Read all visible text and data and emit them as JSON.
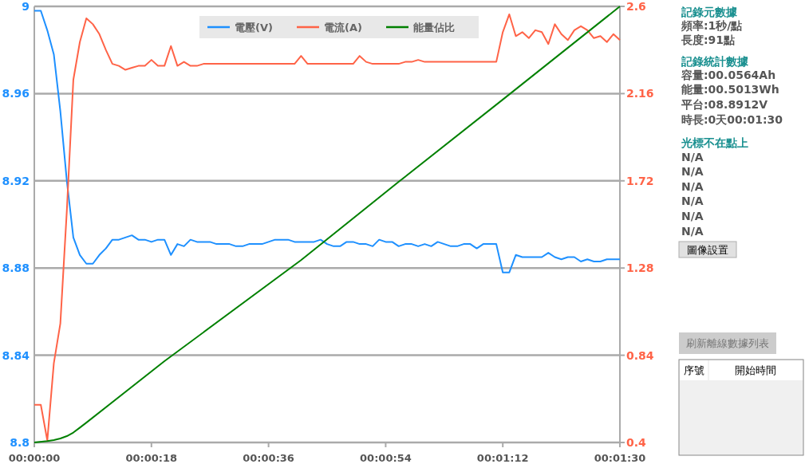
{
  "chart_data": {
    "type": "line",
    "x": [
      0,
      1,
      2,
      3,
      4,
      5,
      6,
      7,
      8,
      9,
      10,
      11,
      12,
      13,
      14,
      15,
      16,
      17,
      18,
      19,
      20,
      21,
      22,
      23,
      24,
      25,
      26,
      27,
      28,
      29,
      30,
      31,
      32,
      33,
      34,
      35,
      36,
      37,
      38,
      39,
      40,
      41,
      42,
      43,
      44,
      45,
      46,
      47,
      48,
      49,
      50,
      51,
      52,
      53,
      54,
      55,
      56,
      57,
      58,
      59,
      60,
      61,
      62,
      63,
      64,
      65,
      66,
      67,
      68,
      69,
      70,
      71,
      72,
      73,
      74,
      75,
      76,
      77,
      78,
      79,
      80,
      81,
      82,
      83,
      84,
      85,
      86,
      87,
      88,
      89,
      90
    ],
    "xlim": [
      0,
      90
    ],
    "xticks": [
      {
        "value": 0,
        "label": "00:00:00"
      },
      {
        "value": 18,
        "label": "00:00:18"
      },
      {
        "value": 36,
        "label": "00:00:36"
      },
      {
        "value": 54,
        "label": "00:00:54"
      },
      {
        "value": 72,
        "label": "00:01:12"
      },
      {
        "value": 90,
        "label": "00:01:30"
      }
    ],
    "ylim": [
      8.8,
      9
    ],
    "yticks": [
      8.8,
      8.84,
      8.88,
      8.92,
      8.96,
      9
    ],
    "y2lim": [
      0.4,
      2.6
    ],
    "y2ticks": [
      0.4,
      0.84,
      1.28,
      1.72,
      2.16,
      2.6
    ],
    "grid": "y",
    "legend": "top",
    "series": [
      {
        "name": "電壓(V)",
        "color": "#1e90ff",
        "values": [
          8.998,
          8.998,
          8.989,
          8.978,
          8.952,
          8.92,
          8.894,
          8.886,
          8.882,
          8.882,
          8.886,
          8.889,
          8.893,
          8.893,
          8.894,
          8.895,
          8.893,
          8.893,
          8.892,
          8.893,
          8.893,
          8.886,
          8.891,
          8.89,
          8.893,
          8.892,
          8.892,
          8.892,
          8.891,
          8.891,
          8.891,
          8.89,
          8.89,
          8.891,
          8.891,
          8.891,
          8.892,
          8.893,
          8.893,
          8.893,
          8.892,
          8.892,
          8.892,
          8.892,
          8.893,
          8.891,
          8.89,
          8.89,
          8.892,
          8.892,
          8.891,
          8.891,
          8.89,
          8.893,
          8.892,
          8.892,
          8.89,
          8.891,
          8.891,
          8.89,
          8.891,
          8.89,
          8.892,
          8.891,
          8.89,
          8.89,
          8.891,
          8.891,
          8.889,
          8.891,
          8.891,
          8.891,
          8.878,
          8.878,
          8.886,
          8.885,
          8.885,
          8.885,
          8.885,
          8.887,
          8.885,
          8.884,
          8.885,
          8.885,
          8.883,
          8.884,
          8.883,
          8.883,
          8.884,
          8.884,
          8.884
        ]
      },
      {
        "name": "電流(A)",
        "color": "#ff6347",
        "axis": "y2",
        "values": [
          0.59,
          0.59,
          0.41,
          0.8,
          1.0,
          1.57,
          2.23,
          2.42,
          2.54,
          2.51,
          2.46,
          2.38,
          2.31,
          2.3,
          2.28,
          2.29,
          2.3,
          2.3,
          2.33,
          2.3,
          2.3,
          2.4,
          2.3,
          2.32,
          2.3,
          2.3,
          2.31,
          2.31,
          2.31,
          2.31,
          2.31,
          2.31,
          2.31,
          2.31,
          2.31,
          2.31,
          2.31,
          2.31,
          2.31,
          2.31,
          2.31,
          2.35,
          2.31,
          2.31,
          2.31,
          2.31,
          2.31,
          2.31,
          2.31,
          2.31,
          2.35,
          2.32,
          2.31,
          2.31,
          2.31,
          2.31,
          2.31,
          2.32,
          2.32,
          2.33,
          2.32,
          2.32,
          2.32,
          2.32,
          2.32,
          2.32,
          2.32,
          2.32,
          2.32,
          2.32,
          2.32,
          2.32,
          2.47,
          2.56,
          2.45,
          2.47,
          2.44,
          2.48,
          2.47,
          2.41,
          2.51,
          2.46,
          2.43,
          2.48,
          2.5,
          2.48,
          2.44,
          2.45,
          2.42,
          2.46,
          2.43
        ]
      },
      {
        "name": "能量佔比",
        "color": "#008000",
        "axis": "y2",
        "x": [
          0,
          2,
          3,
          4,
          5,
          6,
          7,
          8,
          20,
          41,
          56,
          72,
          90
        ],
        "values": [
          0.4,
          0.407,
          0.412,
          0.42,
          0.432,
          0.45,
          0.475,
          0.5,
          0.81,
          1.32,
          1.715,
          2.13,
          2.6
        ]
      }
    ],
    "annotations": [
      "記錄元數據",
      "頻率:1秒/點",
      "長度:91點",
      "記錄統計數據",
      "容量:00.0564Ah",
      "能量:00.5013Wh",
      "平台:08.8912V",
      "時長:0天00:01:30",
      "光標不在點上",
      "N/A",
      "N/A",
      "N/A",
      "N/A",
      "N/A",
      "N/A",
      "圖像設置",
      "刷新離線數據列表",
      "序號",
      "開始時間"
    ]
  }
}
